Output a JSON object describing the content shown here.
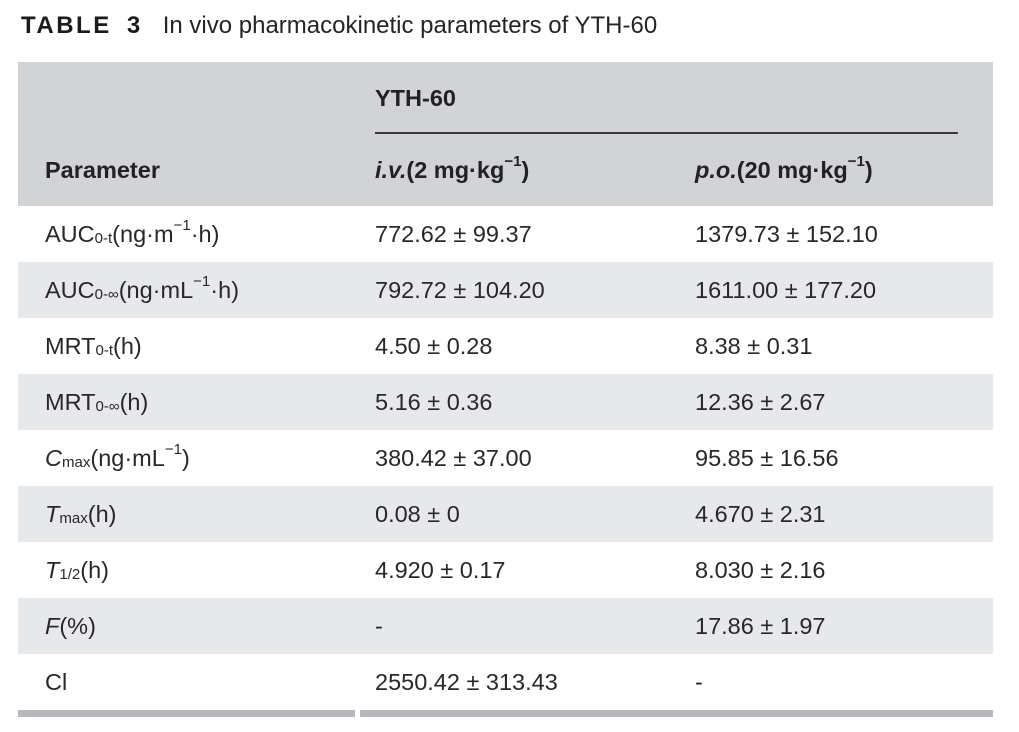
{
  "title": {
    "label": "TABLE 3",
    "caption": "In vivo pharmacokinetic parameters of YTH-60"
  },
  "table": {
    "group_header": "YTH-60",
    "columns": {
      "parameter": "Parameter",
      "iv": "//i.v.// (2 mg·kg^{−1})",
      "po": "//p.o.// (20 mg·kg^{−1})"
    },
    "rows": [
      {
        "param": "AUC_{0-t} (ng·m^{−1}·h)",
        "iv": "772.62 ± 99.37",
        "po": "1379.73 ± 152.10"
      },
      {
        "param": "AUC_{0-∞} (ng·mL^{−1}·h)",
        "iv": "792.72 ± 104.20",
        "po": "1611.00 ± 177.20"
      },
      {
        "param": "MRT_{0-t} (h)",
        "iv": "4.50 ± 0.28",
        "po": "8.38 ± 0.31"
      },
      {
        "param": "MRT_{0-∞} (h)",
        "iv": "5.16 ± 0.36",
        "po": "12.36 ± 2.67"
      },
      {
        "param": "//C//_{max} (ng·mL^{−1})",
        "iv": "380.42 ± 37.00",
        "po": "95.85 ± 16.56"
      },
      {
        "param": "//T//_{max} (h)",
        "iv": "0.08 ± 0",
        "po": "4.670 ± 2.31"
      },
      {
        "param": "//T//_{1/2} (h)",
        "iv": "4.920 ± 0.17",
        "po": "8.030 ± 2.16"
      },
      {
        "param": "//F// (%)",
        "iv": "-",
        "po": "17.86 ± 1.97"
      },
      {
        "param": "Cl",
        "iv": "2550.42 ± 313.43",
        "po": "-"
      }
    ]
  },
  "colors": {
    "header_bg": "#d2d3d5",
    "alt_row_bg": "#e7e8ea",
    "bottom_border": "#b6b8bb",
    "spanner_rule": "#3a383a",
    "text": "#29272a"
  }
}
